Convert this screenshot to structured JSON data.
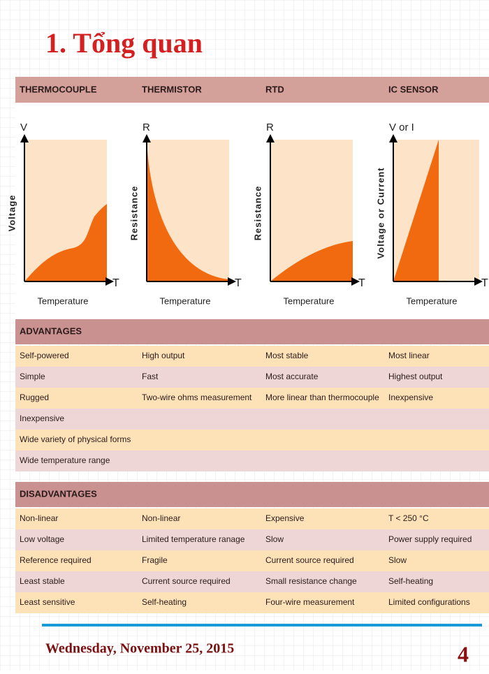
{
  "title": "1. Tổng quan",
  "columns": [
    "THERMOCOUPLE",
    "THERMISTOR",
    "RTD",
    "IC SENSOR"
  ],
  "graphs": [
    {
      "y_symbol": "V",
      "y_label": "Voltage",
      "x_label": "Temperature",
      "x_symbol": "T"
    },
    {
      "y_symbol": "R",
      "y_label": "Resistance",
      "x_label": "Temperature",
      "x_symbol": "T"
    },
    {
      "y_symbol": "R",
      "y_label": "Resistance",
      "x_label": "Temperature",
      "x_symbol": "T"
    },
    {
      "y_symbol": "V or I",
      "y_label": "Voltage or Current",
      "x_label": "Temperature",
      "x_symbol": "T"
    }
  ],
  "advantages": {
    "heading": "ADVANTAGES",
    "rows": [
      [
        "Self-powered",
        "High output",
        "Most stable",
        "Most linear"
      ],
      [
        "Simple",
        "Fast",
        "Most accurate",
        "Highest output"
      ],
      [
        "Rugged",
        "Two-wire ohms measurement",
        "More linear than thermocouple",
        "Inexpensive"
      ],
      [
        "Inexpensive"
      ],
      [
        "Wide variety of physical forms"
      ],
      [
        "Wide temperature range"
      ]
    ]
  },
  "disadvantages": {
    "heading": "DISADVANTAGES",
    "rows": [
      [
        "Non-linear",
        "Non-linear",
        "Expensive",
        "T < 250 °C"
      ],
      [
        "Low voltage",
        "Limited temperature ranage",
        "Slow",
        "Power supply required"
      ],
      [
        "Reference required",
        "Fragile",
        "Current source required",
        "Slow"
      ],
      [
        "Least stable",
        "Current source required",
        "Small resistance change",
        "Self-heating"
      ],
      [
        "Least sensitive",
        "Self-heating",
        "Four-wire measurement",
        "Limited configurations"
      ]
    ]
  },
  "footer": {
    "date": "Wednesday, November 25, 2015",
    "page": "4"
  }
}
